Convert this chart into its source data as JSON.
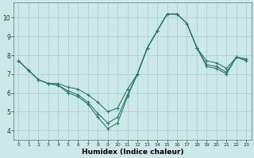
{
  "xlabel": "Humidex (Indice chaleur)",
  "ylabel": "",
  "background_color": "#cce8e8",
  "grid_color": "#aacccc",
  "line_color": "#2a7a6a",
  "x_hours": [
    0,
    1,
    2,
    3,
    4,
    5,
    6,
    7,
    8,
    9,
    10,
    11,
    12,
    13,
    14,
    15,
    16,
    17,
    18,
    19,
    20,
    21,
    22,
    23
  ],
  "line1": [
    7.7,
    7.2,
    6.7,
    6.5,
    6.4,
    6.0,
    5.8,
    5.4,
    4.7,
    4.1,
    4.4,
    5.8,
    7.0,
    8.4,
    9.3,
    10.2,
    10.2,
    9.7,
    8.4,
    7.4,
    7.3,
    7.0,
    7.9,
    7.7
  ],
  "line2": [
    7.7,
    7.2,
    6.7,
    6.5,
    6.4,
    6.1,
    5.9,
    5.5,
    4.9,
    4.4,
    4.7,
    5.9,
    7.0,
    8.4,
    9.3,
    10.2,
    10.2,
    9.7,
    8.4,
    7.5,
    7.4,
    7.1,
    7.9,
    7.8
  ],
  "line3": [
    7.7,
    7.2,
    6.7,
    6.5,
    6.5,
    6.3,
    6.2,
    5.9,
    5.5,
    5.0,
    5.2,
    6.2,
    7.0,
    8.4,
    9.3,
    10.2,
    10.2,
    9.7,
    8.4,
    7.7,
    7.6,
    7.3,
    7.9,
    7.8
  ],
  "xlim": [
    -0.5,
    23.5
  ],
  "ylim": [
    3.5,
    10.8
  ],
  "yticks": [
    4,
    5,
    6,
    7,
    8,
    9,
    10
  ],
  "xticks": [
    0,
    1,
    2,
    3,
    4,
    5,
    6,
    7,
    8,
    9,
    10,
    11,
    12,
    13,
    14,
    15,
    16,
    17,
    18,
    19,
    20,
    21,
    22,
    23
  ],
  "xtick_labels": [
    "0",
    "1",
    "2",
    "3",
    "4",
    "5",
    "6",
    "7",
    "8",
    "9",
    "10",
    "11",
    "12",
    "13",
    "14",
    "15",
    "16",
    "17",
    "18",
    "19",
    "20",
    "21",
    "22",
    "23"
  ]
}
